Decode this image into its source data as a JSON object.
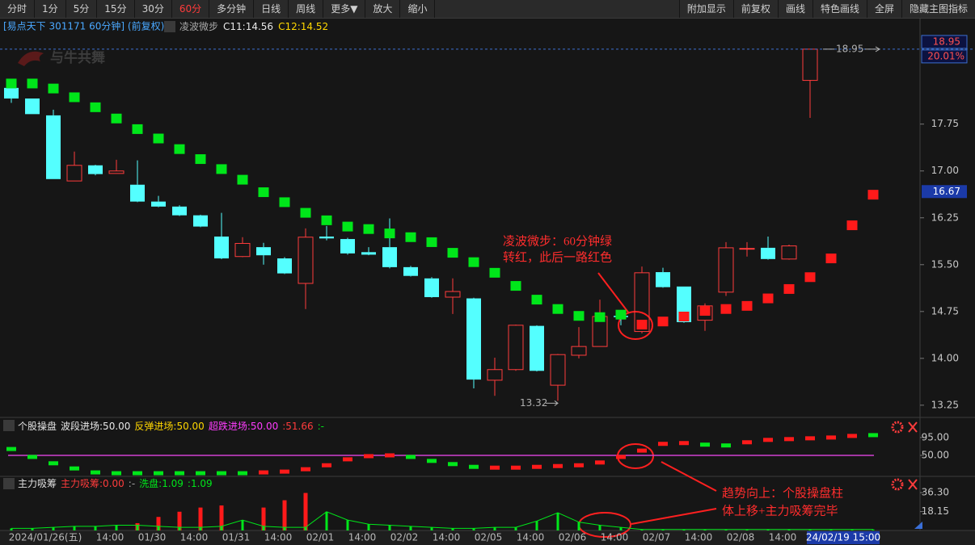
{
  "toolbar": {
    "left": [
      "分时",
      "1分",
      "5分",
      "15分",
      "30分",
      "60分",
      "多分钟",
      "日线",
      "周线",
      "更多▼",
      "放大",
      "缩小"
    ],
    "right": [
      "附加显示",
      "前复权",
      "画线",
      "特色画线",
      "全屏",
      "隐藏主图指标"
    ]
  },
  "watermark": "与牛共舞",
  "chart_data": [
    {
      "type": "candlestick",
      "title": "[易点天下 301171 60分钟] (前复权)",
      "legend_texts": [
        "凌波微步",
        "C11:14.56",
        "C12:14.52"
      ],
      "legend_colors": [
        "#a8a8a8",
        "#e8e8e8",
        "#ffd700"
      ],
      "open": [
        18.33,
        18.16,
        17.89,
        16.84,
        17.09,
        16.96,
        16.78,
        16.51,
        16.43,
        16.29,
        15.95,
        15.63,
        15.78,
        15.6,
        15.2,
        15.95,
        15.91,
        15.7,
        15.78,
        15.46,
        15.28,
        14.98,
        14.96,
        13.65,
        13.82,
        14.52,
        13.57,
        14.05,
        14.19,
        14.68,
        14.43,
        15.38,
        15.15,
        14.61,
        15.06,
        15.76,
        15.77,
        15.59,
        18.45,
        null,
        null,
        null
      ],
      "high": [
        18.34,
        18.16,
        17.98,
        17.31,
        17.1,
        17.18,
        17.17,
        16.6,
        16.45,
        16.3,
        16.33,
        15.94,
        15.85,
        15.62,
        16.08,
        16.12,
        15.93,
        15.78,
        16.24,
        15.48,
        15.3,
        15.28,
        14.97,
        14.01,
        14.54,
        14.53,
        14.07,
        14.5,
        14.94,
        14.76,
        15.47,
        15.45,
        15.15,
        14.88,
        15.86,
        15.86,
        15.95,
        15.82,
        18.95,
        null,
        null,
        null
      ],
      "low": [
        18.09,
        17.91,
        16.87,
        16.84,
        16.93,
        16.96,
        16.5,
        16.42,
        16.28,
        16.1,
        15.59,
        15.62,
        15.5,
        15.35,
        14.79,
        15.89,
        15.66,
        15.65,
        15.44,
        15.31,
        14.97,
        14.71,
        13.52,
        13.4,
        13.8,
        13.79,
        13.32,
        14.0,
        14.19,
        14.53,
        14.4,
        15.13,
        14.57,
        14.44,
        15.0,
        15.63,
        15.58,
        15.58,
        17.85,
        null,
        null,
        null
      ],
      "close": [
        18.16,
        17.91,
        16.87,
        17.09,
        16.95,
        17.0,
        16.51,
        16.43,
        16.29,
        16.11,
        15.6,
        15.84,
        15.65,
        15.36,
        15.94,
        15.92,
        15.68,
        15.66,
        15.46,
        15.32,
        14.98,
        15.07,
        13.66,
        13.82,
        14.53,
        13.8,
        14.06,
        14.19,
        14.67,
        14.66,
        15.37,
        15.14,
        14.58,
        14.84,
        15.77,
        15.76,
        15.59,
        15.8,
        18.95,
        null,
        null,
        null
      ],
      "up_color": "#ff3c3c",
      "down_color": "#54ffff",
      "series": [
        {
          "color": "#00e61a",
          "values": [
            18.4,
            18.4,
            18.32,
            18.18,
            18.02,
            17.84,
            17.67,
            17.52,
            17.35,
            17.19,
            17.03,
            16.86,
            16.66,
            16.5,
            16.33,
            16.21,
            16.11,
            16.07,
            16.0,
            15.94,
            15.86,
            15.69,
            15.54,
            15.37,
            15.16,
            14.94,
            14.79,
            14.68,
            14.66,
            14.7,
            null,
            null,
            null,
            null,
            null,
            null,
            null,
            null,
            null,
            null,
            null,
            null
          ]
        },
        {
          "color": "#ff1a1a",
          "values": [
            null,
            null,
            null,
            null,
            null,
            null,
            null,
            null,
            null,
            null,
            null,
            null,
            null,
            null,
            null,
            null,
            null,
            null,
            null,
            null,
            null,
            null,
            null,
            null,
            null,
            null,
            null,
            null,
            null,
            null,
            14.54,
            14.59,
            14.67,
            14.76,
            14.79,
            14.84,
            14.96,
            15.11,
            15.3,
            15.6,
            16.13,
            16.62
          ]
        }
      ],
      "ylim": [
        13.08,
        19.22
      ],
      "yticks": [
        17.75,
        {
          "value": 17,
          "label": "17.00"
        },
        16.25,
        {
          "value": 15.5,
          "label": "15.50"
        },
        14.75,
        {
          "value": 14,
          "label": "14.00"
        },
        13.25
      ],
      "max_label": 18.95,
      "min_label": 13.32,
      "high_tag": 18.95,
      "high_pct_tag": {
        "value": 20.01,
        "label": "20.01%"
      },
      "cursor_tag": 16.67,
      "annotation_1": [
        "凌波微步：60分钟绿",
        "转红，此后一路红色"
      ],
      "x_axis_labels": [
        "2024/01/26(五)",
        "14:00",
        "01/30",
        "14:00",
        "01/31",
        "14:00",
        "02/01",
        "14:00",
        "02/02",
        "14:00",
        "02/05",
        "14:00",
        "02/06",
        "14:00",
        "02/07",
        "14:00",
        "02/08",
        "14:00"
      ],
      "cursor_x_label": "24/02/19 15:00"
    },
    {
      "type": "marker",
      "title": "个股操盘",
      "legend_texts": [
        "波段进场:50.00",
        "反弹进场:50.00",
        "超跌进场:50.00",
        ":51.66",
        ":-"
      ],
      "legend_colors": [
        "#e8e8e8",
        "#ffd700",
        "#ff3cff",
        "#ff3c3c",
        "#00e61a"
      ],
      "threshold": 50,
      "threshold_color": "#d040d0",
      "series": [
        {
          "color": "#ff1a1a",
          "values": [
            null,
            null,
            null,
            null,
            null,
            null,
            null,
            null,
            null,
            null,
            null,
            null,
            7,
            9,
            15,
            25,
            40,
            48,
            50,
            null,
            null,
            null,
            null,
            19,
            19,
            21,
            23,
            25,
            32,
            46,
            62,
            79,
            81,
            null,
            null,
            83,
            89,
            91,
            93,
            95,
            99,
            null
          ]
        },
        {
          "color": "#00e61a",
          "values": [
            66,
            46,
            30,
            17,
            7,
            5,
            5,
            5,
            5,
            5,
            5,
            5,
            null,
            null,
            null,
            null,
            null,
            null,
            null,
            46,
            36,
            28,
            21,
            null,
            null,
            null,
            null,
            null,
            null,
            null,
            null,
            null,
            null,
            77,
            75,
            null,
            null,
            null,
            null,
            null,
            null,
            101
          ]
        }
      ],
      "ylim": [
        -3,
        109
      ],
      "yticks": [
        {
          "value": 95,
          "label": "95.00"
        },
        {
          "value": 50,
          "label": "50.00"
        }
      ]
    },
    {
      "type": "bar",
      "title": "主力吸筹",
      "legend_texts": [
        "主力吸筹:0.00",
        ":-",
        "洗盘:1.09",
        ":1.09"
      ],
      "legend_colors": [
        "#ff3c3c",
        "#a8a8a8",
        "#00e61a",
        "#00e61a"
      ],
      "series": [
        {
          "color": "#ff1a1a",
          "values": [
            0,
            0,
            0,
            0,
            0,
            0,
            7,
            13,
            18,
            22,
            24,
            0,
            22,
            29,
            36,
            0,
            0,
            0,
            0,
            0,
            0,
            0,
            0,
            0,
            0,
            0,
            0,
            0,
            0,
            0,
            0,
            0,
            0,
            0,
            0,
            0,
            0,
            0,
            0,
            0,
            0,
            0
          ]
        },
        {
          "color": "#00e61a",
          "values": [
            2,
            2,
            3,
            4,
            4,
            5,
            5,
            4,
            3,
            3,
            4,
            10,
            4,
            3,
            3,
            18,
            10,
            6,
            5,
            4,
            3,
            2,
            2,
            3,
            3,
            9,
            17,
            8,
            5,
            3,
            1,
            1,
            1,
            1,
            1,
            1,
            1,
            1,
            1,
            1,
            1,
            1
          ]
        }
      ],
      "ylim": [
        0,
        40.3
      ],
      "yticks": [
        {
          "value": 36.3,
          "label": "36.30"
        },
        18.15
      ],
      "annotation_2": [
        "趋势向上：个股操盘柱",
        "体上移+主力吸筹完毕"
      ]
    }
  ]
}
